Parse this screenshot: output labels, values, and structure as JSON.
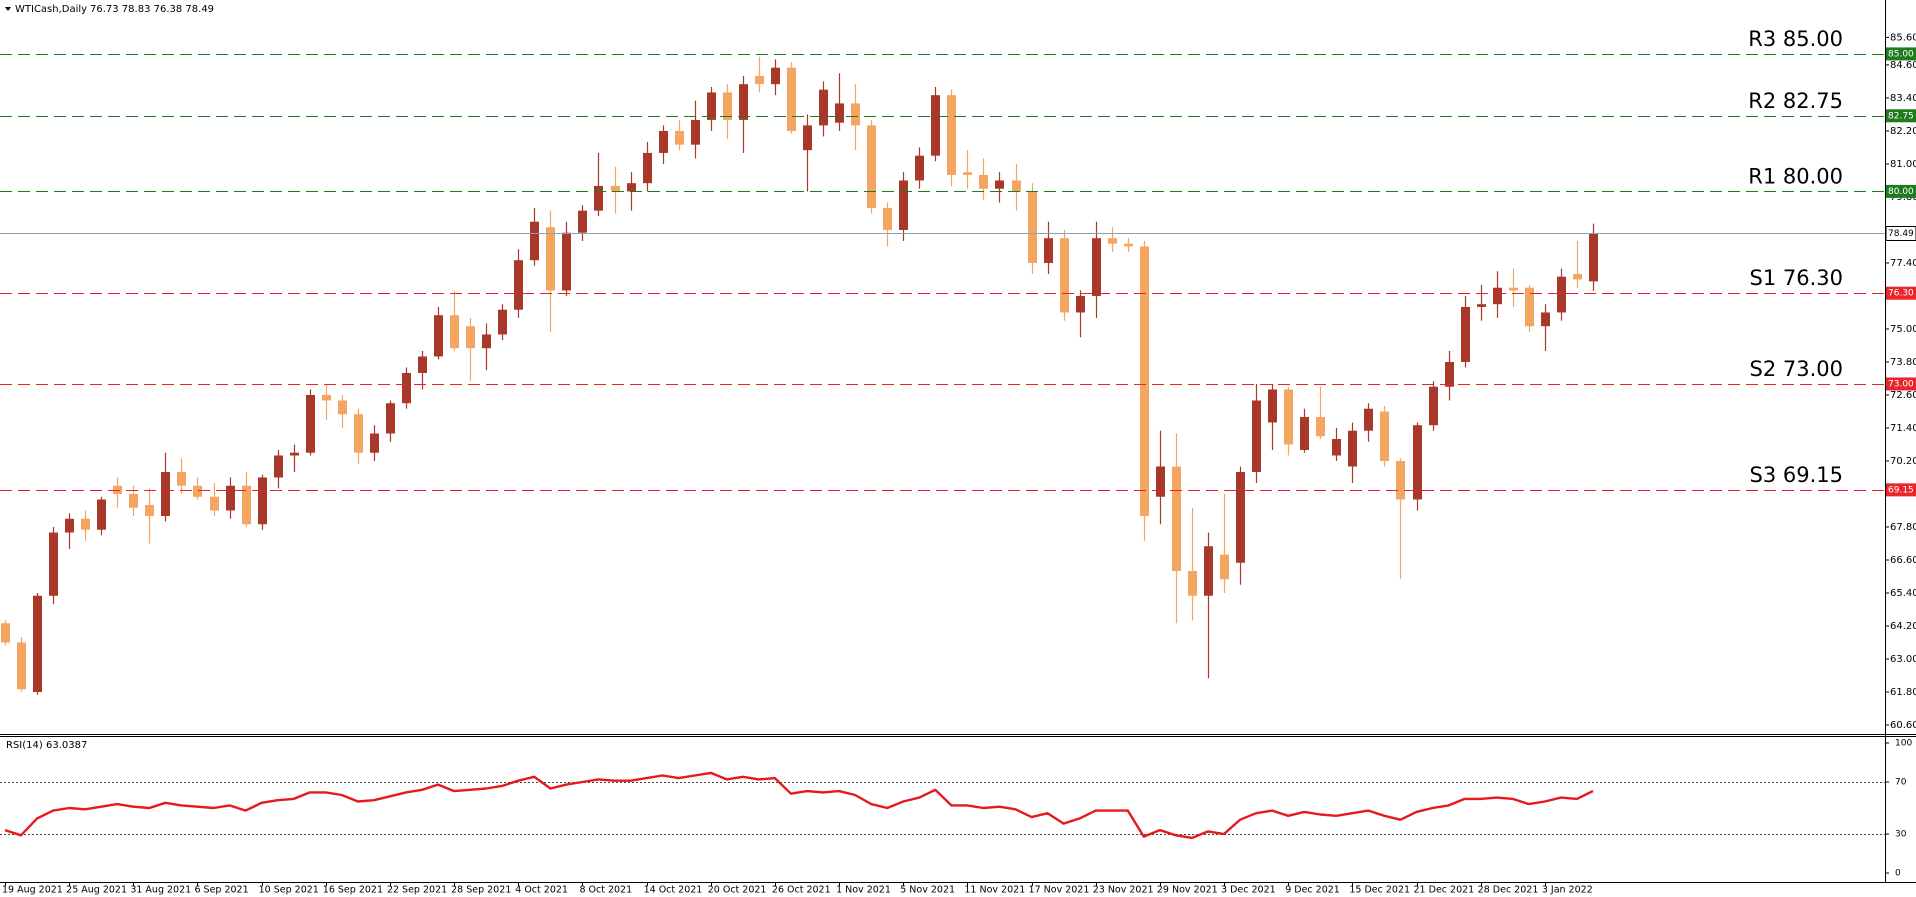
{
  "chart_data": [
    {
      "type": "candlestick",
      "title": "WTICash,Daily",
      "subtitle": "76.73 78.83 76.38 78.49",
      "categories": [
        "19 Aug 2021",
        null,
        null,
        null,
        "25 Aug 2021",
        null,
        null,
        null,
        "31 Aug 2021",
        null,
        null,
        null,
        "6 Sep 2021",
        null,
        null,
        null,
        "10 Sep 2021",
        null,
        null,
        null,
        "16 Sep 2021",
        null,
        null,
        null,
        "22 Sep 2021",
        null,
        null,
        null,
        "28 Sep 2021",
        null,
        null,
        null,
        "4 Oct 2021",
        null,
        null,
        null,
        "8 Oct 2021",
        null,
        null,
        null,
        "14 Oct 2021",
        null,
        null,
        null,
        "20 Oct 2021",
        null,
        null,
        null,
        "26 Oct 2021",
        null,
        null,
        null,
        "1 Nov 2021",
        null,
        null,
        null,
        "5 Nov 2021",
        null,
        null,
        null,
        "11 Nov 2021",
        null,
        null,
        null,
        "17 Nov 2021",
        null,
        null,
        null,
        "23 Nov 2021",
        null,
        null,
        null,
        "29 Nov 2021",
        null,
        null,
        null,
        "3 Dec 2021",
        null,
        null,
        null,
        "9 Dec 2021",
        null,
        null,
        null,
        "15 Dec 2021",
        null,
        null,
        null,
        "21 Dec 2021",
        null,
        null,
        null,
        "28 Dec 2021",
        null,
        null,
        null,
        "3 Jan 2022",
        null,
        null,
        null
      ],
      "open": [
        64.3,
        63.6,
        61.8,
        65.3,
        67.6,
        68.1,
        67.7,
        69.3,
        69.0,
        68.6,
        68.2,
        69.8,
        69.3,
        68.9,
        68.4,
        69.3,
        67.9,
        69.6,
        70.4,
        70.5,
        72.6,
        72.4,
        71.9,
        70.5,
        71.2,
        72.3,
        73.4,
        74.0,
        75.5,
        75.1,
        74.3,
        74.8,
        75.7,
        77.5,
        78.7,
        76.4,
        78.5,
        79.3,
        80.2,
        80.0,
        80.3,
        81.4,
        82.2,
        81.7,
        82.6,
        83.6,
        82.6,
        84.2,
        83.9,
        84.5,
        81.5,
        82.4,
        82.5,
        83.2,
        82.4,
        79.4,
        78.6,
        80.4,
        81.3,
        83.5,
        80.7,
        80.6,
        80.1,
        80.4,
        80.0,
        77.4,
        78.3,
        75.6,
        76.2,
        78.3,
        78.1,
        78.0,
        68.9,
        70.0,
        66.2,
        65.3,
        66.8,
        66.5,
        69.8,
        71.6,
        72.8,
        70.6,
        71.8,
        70.4,
        70.0,
        71.3,
        72.0,
        70.2,
        68.8,
        71.5,
        72.9,
        73.8,
        75.8,
        75.9,
        76.5,
        76.5,
        75.1,
        75.6,
        77.0,
        76.73
      ],
      "high": [
        64.4,
        63.8,
        65.4,
        67.8,
        68.3,
        68.4,
        68.9,
        69.6,
        69.3,
        69.2,
        70.5,
        70.3,
        69.6,
        69.4,
        69.6,
        69.8,
        69.7,
        70.6,
        70.8,
        72.8,
        73.0,
        72.6,
        72.1,
        71.5,
        72.4,
        73.6,
        74.2,
        75.8,
        76.4,
        75.4,
        75.2,
        75.9,
        77.9,
        79.4,
        79.3,
        78.9,
        79.5,
        81.4,
        80.9,
        80.7,
        81.8,
        82.4,
        82.6,
        83.3,
        83.8,
        83.9,
        84.2,
        84.9,
        84.8,
        84.7,
        82.8,
        84.0,
        84.3,
        83.9,
        82.6,
        79.6,
        80.7,
        81.6,
        83.8,
        83.7,
        81.5,
        81.2,
        80.7,
        81.0,
        80.3,
        78.9,
        78.6,
        76.4,
        78.9,
        78.7,
        78.3,
        78.2,
        71.3,
        71.2,
        68.5,
        67.6,
        69.0,
        70.0,
        73.0,
        73.0,
        72.9,
        72.1,
        72.9,
        71.4,
        71.6,
        72.3,
        72.2,
        70.3,
        71.6,
        73.1,
        74.2,
        76.2,
        76.6,
        77.1,
        77.2,
        76.6,
        75.9,
        77.2,
        78.2,
        78.83
      ],
      "low": [
        63.5,
        61.8,
        61.7,
        65.0,
        67.0,
        67.3,
        67.5,
        68.5,
        68.2,
        67.2,
        68.0,
        69.0,
        68.8,
        68.2,
        68.1,
        67.8,
        67.7,
        69.2,
        69.8,
        70.4,
        71.7,
        71.4,
        70.1,
        70.2,
        70.9,
        72.1,
        72.8,
        73.9,
        74.2,
        73.1,
        73.5,
        74.6,
        75.4,
        77.3,
        74.9,
        76.2,
        78.2,
        79.1,
        79.2,
        79.3,
        80.0,
        81.0,
        81.5,
        81.2,
        82.2,
        81.9,
        81.4,
        83.6,
        83.5,
        82.1,
        80.0,
        82.0,
        82.2,
        81.5,
        79.2,
        78.0,
        78.2,
        80.1,
        81.1,
        80.2,
        80.1,
        79.7,
        79.6,
        79.3,
        77.0,
        77.0,
        75.3,
        74.7,
        75.4,
        77.8,
        77.8,
        67.3,
        67.9,
        64.3,
        64.4,
        62.3,
        65.4,
        65.7,
        69.4,
        70.6,
        70.4,
        70.5,
        71.0,
        70.2,
        69.4,
        70.9,
        70.0,
        65.9,
        68.4,
        71.3,
        72.4,
        73.6,
        75.3,
        75.4,
        75.8,
        74.9,
        74.2,
        75.3,
        76.5,
        76.38
      ],
      "close": [
        63.6,
        61.9,
        65.3,
        67.6,
        68.1,
        67.7,
        68.8,
        69.0,
        68.5,
        68.2,
        69.8,
        69.3,
        68.9,
        68.4,
        69.3,
        67.9,
        69.6,
        70.4,
        70.5,
        72.6,
        72.4,
        71.9,
        70.5,
        71.2,
        72.3,
        73.4,
        74.0,
        75.5,
        74.3,
        74.3,
        74.8,
        75.7,
        77.5,
        78.9,
        76.4,
        78.5,
        79.3,
        80.2,
        80.0,
        80.3,
        81.4,
        82.2,
        81.7,
        82.6,
        83.6,
        82.6,
        83.9,
        83.9,
        84.5,
        82.2,
        82.4,
        83.7,
        83.2,
        82.4,
        79.4,
        78.6,
        80.4,
        81.3,
        83.5,
        80.6,
        80.6,
        80.1,
        80.4,
        80.0,
        77.4,
        78.3,
        75.6,
        76.2,
        78.3,
        78.1,
        78.0,
        68.2,
        70.0,
        66.2,
        65.3,
        67.1,
        65.9,
        69.8,
        72.4,
        72.8,
        70.8,
        71.8,
        71.1,
        71.0,
        71.3,
        72.1,
        70.2,
        68.8,
        71.5,
        72.9,
        73.8,
        75.8,
        75.9,
        76.5,
        76.4,
        75.1,
        75.6,
        76.9,
        76.8,
        78.49
      ],
      "up_color": "#a8382a",
      "down_color": "#f5a562",
      "ylim": [
        60.31,
        86.96
      ],
      "yticks": [
        {
          "value": 60.6,
          "label": "60.60"
        },
        {
          "value": 61.8,
          "label": "61.80"
        },
        {
          "value": 63.0,
          "label": "63.00"
        },
        {
          "value": 64.2,
          "label": "64.20"
        },
        {
          "value": 65.4,
          "label": "65.40"
        },
        {
          "value": 66.6,
          "label": "66.60"
        },
        {
          "value": 67.8,
          "label": "67.80"
        },
        {
          "value": 70.2,
          "label": "70.20"
        },
        {
          "value": 71.4,
          "label": "71.40"
        },
        {
          "value": 72.6,
          "label": "72.60"
        },
        {
          "value": 73.8,
          "label": "73.80"
        },
        {
          "value": 75.0,
          "label": "75.00"
        },
        {
          "value": 77.4,
          "label": "77.40"
        },
        {
          "value": 79.8,
          "label": "79.80"
        },
        {
          "value": 81.0,
          "label": "81.00"
        },
        {
          "value": 82.2,
          "label": "82.20"
        },
        {
          "value": 83.4,
          "label": "83.40"
        },
        {
          "value": 84.6,
          "label": "84.60"
        },
        {
          "value": 85.6,
          "label": "85.60"
        }
      ],
      "levels": [
        {
          "label": "R3 85.00",
          "value": 85.0,
          "axis_label": "85.00",
          "color": "#1e7b1e"
        },
        {
          "label": "R2 82.75",
          "value": 82.75,
          "axis_label": "82.75",
          "color": "#1e7b1e"
        },
        {
          "label": "R1 80.00",
          "value": 80.0,
          "axis_label": "80.00",
          "color": "#1e7b1e"
        },
        {
          "label": "S1 76.30",
          "value": 76.3,
          "axis_label": "76.30",
          "color": "#e8252b"
        },
        {
          "label": "S2 73.00",
          "value": 73.0,
          "axis_label": "73.00",
          "color": "#e8252b"
        },
        {
          "label": "S3 69.15",
          "value": 69.15,
          "axis_label": "69.15",
          "color": "#e8252b"
        }
      ],
      "price_line": {
        "value": 78.49,
        "label": "78.49",
        "color": "#8da2b6"
      }
    },
    {
      "type": "line",
      "title": "RSI(14) 63.0387",
      "color": "#e8191c",
      "values": [
        33,
        29,
        42,
        48,
        50,
        49,
        51,
        53,
        51,
        50,
        54,
        52,
        51,
        50,
        52,
        48,
        54,
        56,
        57,
        62,
        62,
        60,
        55,
        56,
        59,
        62,
        64,
        68,
        63,
        64,
        65,
        67,
        71,
        74,
        65,
        68,
        70,
        72,
        71,
        71,
        73,
        75,
        73,
        75,
        77,
        72,
        74,
        72,
        73,
        61,
        63,
        62,
        63,
        60,
        53,
        50,
        55,
        58,
        64,
        52,
        52,
        50,
        51,
        49,
        43,
        46,
        38,
        42,
        48,
        48,
        48,
        28,
        33,
        29,
        27,
        32,
        30,
        41,
        46,
        48,
        44,
        47,
        45,
        44,
        46,
        48,
        44,
        41,
        47,
        50,
        52,
        57,
        57,
        58,
        57,
        53,
        55,
        58,
        57,
        63.0387
      ],
      "ylim": [
        -6.9,
        104.6
      ],
      "yticks": [
        0,
        30,
        70,
        100
      ],
      "levels": [
        30,
        70
      ]
    }
  ]
}
